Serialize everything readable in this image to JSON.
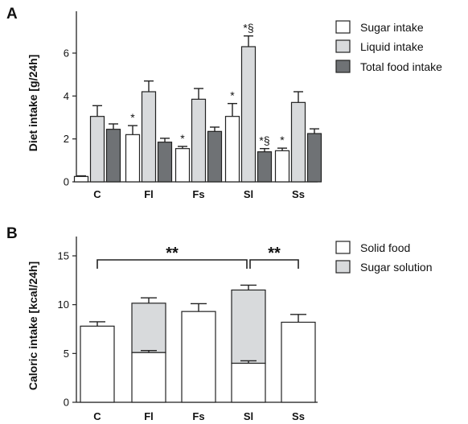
{
  "chart_data": [
    {
      "panel": "A",
      "type": "bar",
      "ylabel": "Diet intake [g/24h]",
      "ylim": [
        0,
        8
      ],
      "yticks": [
        0,
        2,
        4,
        6
      ],
      "categories": [
        "C",
        "Fl",
        "Fs",
        "Sl",
        "Ss"
      ],
      "legend_position": "right",
      "series": [
        {
          "name": "Sugar intake",
          "color": "#ffffff",
          "values": [
            0.25,
            2.2,
            1.55,
            3.05,
            1.45
          ],
          "errors": [
            0.03,
            0.42,
            0.1,
            0.6,
            0.12
          ]
        },
        {
          "name": "Liquid intake",
          "color": "#d8dadc",
          "values": [
            3.05,
            4.2,
            3.85,
            6.3,
            3.7
          ],
          "errors": [
            0.5,
            0.5,
            0.5,
            0.5,
            0.5
          ]
        },
        {
          "name": "Total food intake",
          "color": "#6f7275",
          "values": [
            2.45,
            1.85,
            2.35,
            1.4,
            2.25
          ],
          "errors": [
            0.25,
            0.18,
            0.2,
            0.15,
            0.22
          ]
        }
      ],
      "annotations": [
        {
          "category": "Fl",
          "series": 0,
          "text": "*"
        },
        {
          "category": "Fs",
          "series": 0,
          "text": "*"
        },
        {
          "category": "Sl",
          "series": 0,
          "text": "*"
        },
        {
          "category": "Sl",
          "series": 1,
          "text": "*§"
        },
        {
          "category": "Sl",
          "series": 2,
          "text": "*§"
        },
        {
          "category": "Ss",
          "series": 0,
          "text": "*"
        }
      ]
    },
    {
      "panel": "B",
      "type": "bar",
      "stacked": true,
      "ylabel": "Caloric intake [kcal/24h]",
      "ylim": [
        0,
        17.5
      ],
      "yticks": [
        0,
        5,
        10,
        15
      ],
      "categories": [
        "C",
        "Fl",
        "Fs",
        "Sl",
        "Ss"
      ],
      "legend_position": "right",
      "series": [
        {
          "name": "Solid  food",
          "color": "#ffffff",
          "values": [
            7.8,
            5.1,
            9.3,
            4.0,
            8.2
          ],
          "errors": [
            0.45,
            0.2,
            0.8,
            0.25,
            0.8
          ]
        },
        {
          "name": "Sugar solution",
          "color": "#d8dadc",
          "values": [
            0,
            5.05,
            0,
            7.5,
            0
          ],
          "errors": [
            0,
            0.55,
            0,
            0.5,
            0
          ]
        }
      ],
      "significance": [
        {
          "from": "C",
          "to": "Sl",
          "text": "**"
        },
        {
          "from": "Sl",
          "to": "Ss",
          "text": "**"
        }
      ]
    }
  ]
}
